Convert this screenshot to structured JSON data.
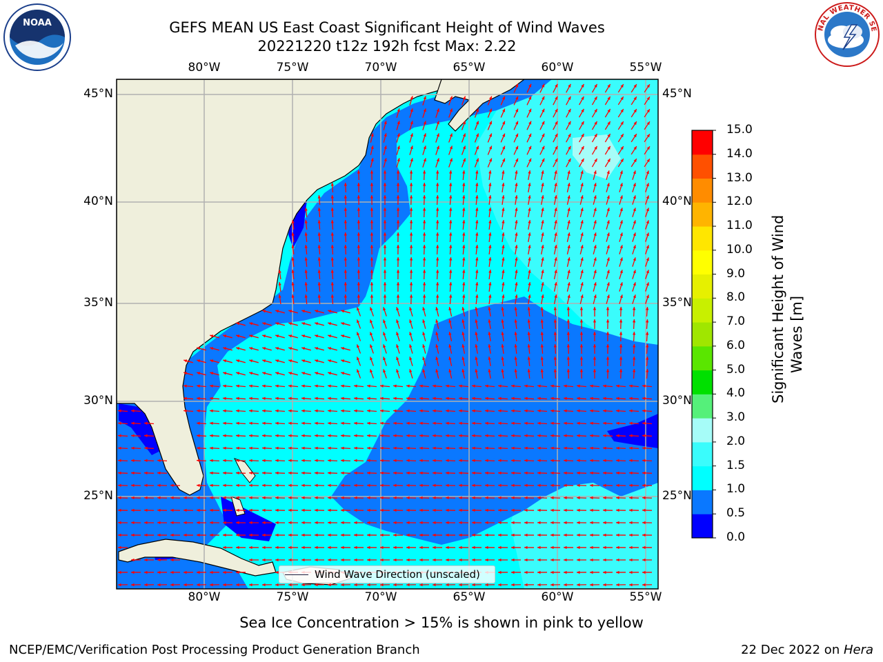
{
  "header": {
    "title_line1": "GEFS MEAN US East Coast Significant Height of Wind Waves",
    "title_line2": "20221220 t12z 192h fcst   Max: 2.22"
  },
  "logos": {
    "left": "NOAA",
    "right": "NATIONAL WEATHER SERVICE"
  },
  "map": {
    "lon_labels": [
      "80°W",
      "75°W",
      "70°W",
      "65°W",
      "60°W",
      "55°W"
    ],
    "lat_labels": [
      "45°N",
      "40°N",
      "35°N",
      "30°N",
      "25°N"
    ],
    "land_color": "#efefdc",
    "wind_arrow_color": "#ff0000",
    "legend_label": "Wind Wave Direction (unscaled)"
  },
  "colorbar": {
    "label": "Significant Height of Wind Waves [m]",
    "label_line1": "Significant Height of Wind",
    "label_line2": "Waves [m]",
    "ticks": [
      "0.0",
      "0.5",
      "1.0",
      "1.5",
      "2.0",
      "3.0",
      "4.0",
      "5.0",
      "6.0",
      "7.0",
      "8.0",
      "9.0",
      "10.0",
      "11.0",
      "12.0",
      "13.0",
      "14.0",
      "15.0"
    ],
    "colors": [
      "#0000ff",
      "#0a78ff",
      "#00ffff",
      "#3afcfc",
      "#a6fcf8",
      "#55f07a",
      "#00e000",
      "#5ae600",
      "#a0e600",
      "#c8f000",
      "#e6f000",
      "#ffff00",
      "#ffe600",
      "#ffb400",
      "#ff8c00",
      "#ff5000",
      "#ff0000"
    ]
  },
  "caption": "Sea Ice Concentration > 15% is shown in pink to yellow",
  "footer": {
    "left": "NCEP/EMC/Verification Post Processing Product Generation Branch",
    "date": "22 Dec 2022 on ",
    "host": "Hera"
  }
}
